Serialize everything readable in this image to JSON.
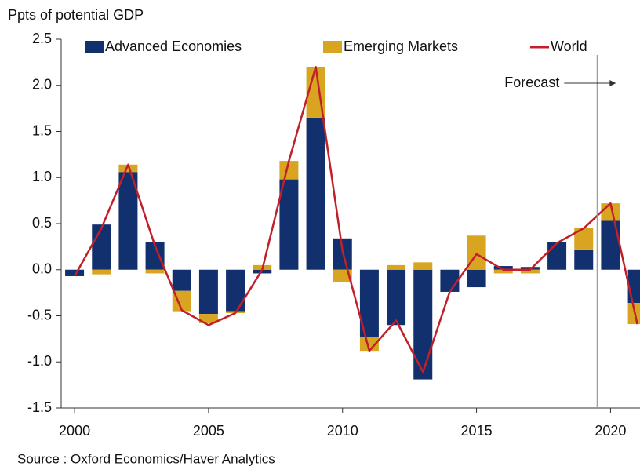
{
  "chart_data": {
    "type": "bar_line",
    "ylabel": "Ppts of potential GDP",
    "source": "Source : Oxford Economics/Haver Analytics",
    "x": [
      2000,
      2001,
      2002,
      2003,
      2004,
      2005,
      2006,
      2007,
      2008,
      2009,
      2010,
      2011,
      2012,
      2013,
      2014,
      2015,
      2016,
      2017,
      2018,
      2019,
      2020,
      2021
    ],
    "xlim": [
      1999.5,
      2021.1
    ],
    "xticks": [
      2000,
      2005,
      2010,
      2015,
      2020
    ],
    "ylim": [
      -1.5,
      2.5
    ],
    "yticks": [
      {
        "value": 2.5,
        "label": "2.5"
      },
      {
        "value": 2,
        "label": "2.0"
      },
      {
        "value": 1.5,
        "label": "1.5"
      },
      {
        "value": 1,
        "label": "1.0"
      },
      {
        "value": 0.5,
        "label": "0.5"
      },
      {
        "value": 0,
        "label": "0.0"
      },
      {
        "value": -0.5,
        "label": "-0.5"
      },
      {
        "value": -1,
        "label": "-1.0"
      },
      {
        "value": -1.5,
        "label": "-1.5"
      }
    ],
    "series": [
      {
        "name": "Advanced Economies",
        "kind": "bar",
        "color": "#12306e",
        "values": [
          -0.07,
          0.49,
          1.06,
          0.3,
          -0.23,
          -0.48,
          -0.45,
          -0.04,
          0.98,
          1.65,
          0.34,
          -0.73,
          -0.6,
          -1.19,
          -0.24,
          -0.19,
          0.04,
          0.03,
          0.3,
          0.22,
          0.53,
          -0.36
        ]
      },
      {
        "name": "Emerging Markets",
        "kind": "bar",
        "color": "#d9a520",
        "values": [
          0,
          -0.05,
          0.08,
          -0.04,
          -0.22,
          -0.1,
          -0.02,
          0.05,
          0.2,
          0.55,
          -0.13,
          -0.15,
          0.05,
          0.08,
          0,
          0.37,
          -0.04,
          -0.04,
          0,
          0.23,
          0.19,
          -0.23
        ]
      },
      {
        "name": "World",
        "kind": "line",
        "color": "#c0202a",
        "values": [
          -0.07,
          0.45,
          1.14,
          0.26,
          -0.44,
          -0.6,
          -0.47,
          0,
          1.18,
          2.2,
          0.2,
          -0.88,
          -0.55,
          -1.11,
          -0.24,
          0.17,
          0,
          0,
          0.29,
          0.45,
          0.72,
          -0.59
        ]
      }
    ],
    "annotations": [
      {
        "text": "Forecast",
        "x": 2019.5
      }
    ]
  }
}
